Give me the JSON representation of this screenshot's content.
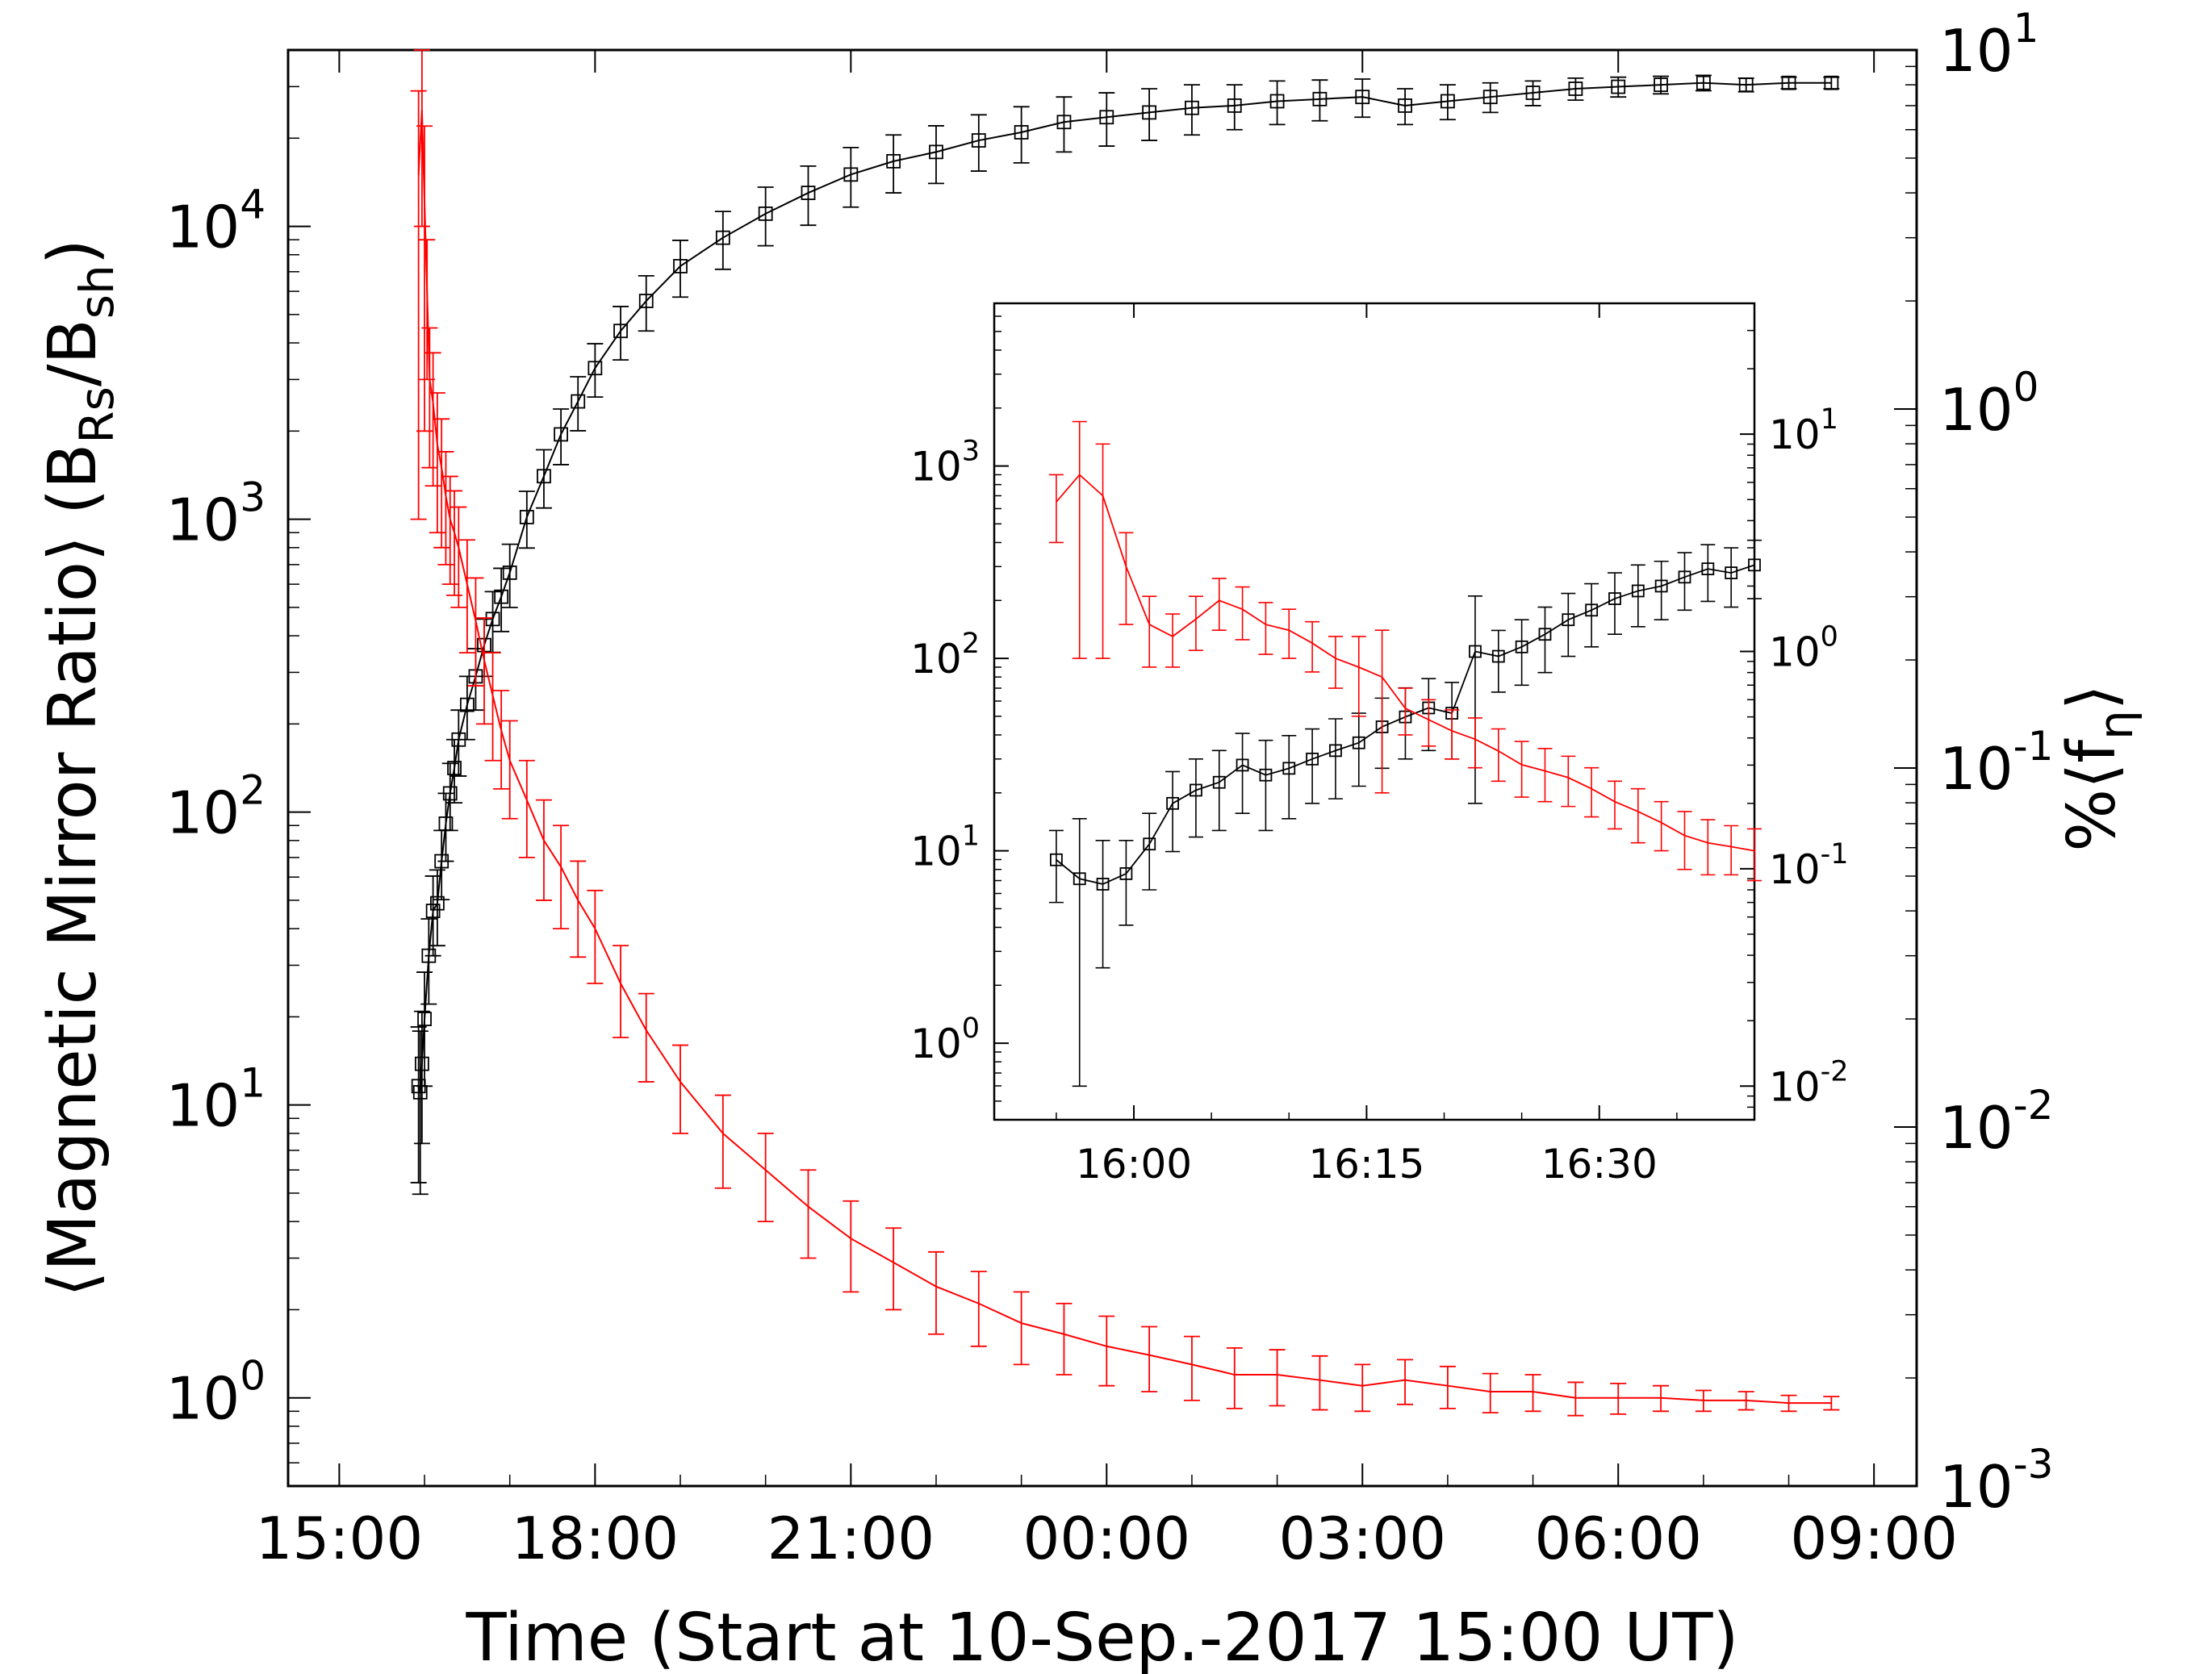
{
  "chart_data": [
    {
      "type": "line",
      "xlabel": "Time (Start at 10-Sep.-2017 15:00 UT)",
      "ylabel": "⟨Magnetic Mirror Ratio⟩ (B_Rs/B_sh)",
      "ylabel_parts": {
        "pre": "⟨Magnetic Mirror Ratio⟩ (B",
        "sub1": "Rs",
        "mid": "/B",
        "sub2": "sh",
        "post": ")"
      },
      "y2label": "%⟨f_η⟩",
      "y2label_parts": {
        "pre": "%⟨f",
        "sub": "η",
        "post": "⟩"
      },
      "x_unit": "hours after 10-Sep-2017 15:00 UT",
      "xlim": [
        -0.6,
        18.5
      ],
      "x_ticks": [
        0,
        3,
        6,
        9,
        12,
        15,
        18
      ],
      "x_tick_labels": [
        "15:00",
        "18:00",
        "21:00",
        "00:00",
        "03:00",
        "06:00",
        "09:00"
      ],
      "yscale": "log",
      "ylim": [
        0.5,
        40000
      ],
      "y_ticks": [
        1,
        10,
        100,
        1000,
        10000
      ],
      "y_tick_labels": [
        {
          "base": "10",
          "exp": "0"
        },
        {
          "base": "10",
          "exp": "1"
        },
        {
          "base": "10",
          "exp": "2"
        },
        {
          "base": "10",
          "exp": "3"
        },
        {
          "base": "10",
          "exp": "4"
        }
      ],
      "y2scale": "log",
      "y2lim": [
        0.001,
        10
      ],
      "y2_ticks": [
        0.001,
        0.01,
        0.1,
        1,
        10
      ],
      "y2_tick_labels": [
        {
          "base": "10",
          "exp": "-3"
        },
        {
          "base": "10",
          "exp": "-2"
        },
        {
          "base": "10",
          "exp": "-1"
        },
        {
          "base": "10",
          "exp": "0"
        },
        {
          "base": "10",
          "exp": "1"
        }
      ],
      "grid": false,
      "series": [
        {
          "axis": "right",
          "color": "#000000",
          "marker": "square",
          "error_bars": true,
          "x": [
            0.93,
            0.95,
            0.97,
            1.0,
            1.05,
            1.1,
            1.15,
            1.2,
            1.25,
            1.3,
            1.35,
            1.4,
            1.5,
            1.6,
            1.7,
            1.8,
            1.9,
            2.0,
            2.2,
            2.4,
            2.6,
            2.8,
            3.0,
            3.3,
            3.6,
            4.0,
            4.5,
            5.0,
            5.5,
            6.0,
            6.5,
            7.0,
            7.5,
            8.0,
            8.5,
            9.0,
            9.5,
            10.0,
            10.5,
            11.0,
            11.5,
            12.0,
            12.5,
            13.0,
            13.5,
            14.0,
            14.5,
            15.0,
            15.5,
            16.0,
            16.5,
            17.0,
            17.5
          ],
          "y": [
            0.013,
            0.0125,
            0.015,
            0.02,
            0.03,
            0.04,
            0.042,
            0.055,
            0.07,
            0.085,
            0.1,
            0.12,
            0.15,
            0.18,
            0.22,
            0.26,
            0.3,
            0.35,
            0.5,
            0.65,
            0.85,
            1.05,
            1.3,
            1.65,
            2.0,
            2.5,
            3.0,
            3.5,
            4.0,
            4.5,
            4.9,
            5.2,
            5.6,
            5.9,
            6.3,
            6.5,
            6.7,
            6.9,
            7.0,
            7.2,
            7.3,
            7.4,
            7.0,
            7.2,
            7.4,
            7.6,
            7.8,
            7.9,
            8.0,
            8.1,
            8.0,
            8.1,
            8.1
          ],
          "yerr": [
            0.006,
            0.006,
            0.006,
            0.007,
            0.008,
            0.01,
            0.01,
            0.012,
            0.015,
            0.018,
            0.02,
            0.025,
            0.03,
            0.035,
            0.04,
            0.05,
            0.06,
            0.07,
            0.09,
            0.12,
            0.15,
            0.18,
            0.22,
            0.28,
            0.35,
            0.45,
            0.55,
            0.65,
            0.75,
            0.85,
            0.9,
            0.95,
            1.0,
            1.05,
            1.1,
            1.1,
            1.1,
            1.1,
            1.0,
            1.0,
            0.95,
            0.9,
            0.8,
            0.8,
            0.7,
            0.6,
            0.55,
            0.5,
            0.45,
            0.4,
            0.35,
            0.3,
            0.3
          ]
        },
        {
          "axis": "left",
          "color": "#ff0000",
          "marker": "none",
          "error_bars": true,
          "x": [
            0.93,
            0.97,
            1.0,
            1.03,
            1.06,
            1.1,
            1.15,
            1.2,
            1.25,
            1.3,
            1.35,
            1.4,
            1.5,
            1.6,
            1.7,
            1.8,
            1.9,
            2.0,
            2.2,
            2.4,
            2.6,
            2.8,
            3.0,
            3.3,
            3.6,
            4.0,
            4.5,
            5.0,
            5.5,
            6.0,
            6.5,
            7.0,
            7.5,
            8.0,
            8.5,
            9.0,
            9.5,
            10.0,
            10.5,
            11.0,
            11.5,
            12.0,
            12.5,
            13.0,
            13.5,
            14.0,
            14.5,
            15.0,
            15.5,
            16.0,
            16.5,
            17.0,
            17.5
          ],
          "y": [
            15000,
            25000,
            12000,
            6000,
            3000,
            2500,
            1800,
            1500,
            1200,
            1000,
            900,
            800,
            600,
            450,
            330,
            250,
            190,
            150,
            110,
            80,
            65,
            50,
            40,
            26,
            18,
            12,
            8,
            6,
            4.5,
            3.5,
            2.9,
            2.4,
            2.1,
            1.8,
            1.65,
            1.5,
            1.4,
            1.3,
            1.2,
            1.2,
            1.15,
            1.1,
            1.15,
            1.1,
            1.05,
            1.05,
            1.0,
            1.0,
            1.0,
            0.98,
            0.98,
            0.96,
            0.96
          ],
          "yerr": [
            14000,
            15000,
            10000,
            3000,
            1500,
            1200,
            900,
            700,
            500,
            400,
            350,
            300,
            250,
            180,
            130,
            100,
            70,
            55,
            40,
            30,
            25,
            18,
            14,
            9,
            6,
            4,
            2.8,
            2.0,
            1.5,
            1.2,
            0.9,
            0.75,
            0.6,
            0.5,
            0.45,
            0.4,
            0.35,
            0.32,
            0.28,
            0.26,
            0.24,
            0.2,
            0.2,
            0.18,
            0.16,
            0.15,
            0.13,
            0.12,
            0.1,
            0.08,
            0.07,
            0.06,
            0.05
          ]
        }
      ]
    },
    {
      "type": "line",
      "role": "inset",
      "x_unit": "minutes after 15:00 UT",
      "xlim": [
        51,
        100
      ],
      "x_ticks": [
        60,
        75,
        90
      ],
      "x_tick_labels": [
        "16:00",
        "16:15",
        "16:30"
      ],
      "yscale": "log",
      "ylim": [
        0.4,
        7000
      ],
      "y_ticks": [
        1,
        10,
        100,
        1000
      ],
      "y_tick_labels": [
        {
          "base": "10",
          "exp": "0"
        },
        {
          "base": "10",
          "exp": "1"
        },
        {
          "base": "10",
          "exp": "2"
        },
        {
          "base": "10",
          "exp": "3"
        }
      ],
      "y2scale": "log",
      "y2lim": [
        0.007,
        40
      ],
      "y2_ticks": [
        0.01,
        0.1,
        1,
        10
      ],
      "y2_tick_labels": [
        {
          "base": "10",
          "exp": "-2"
        },
        {
          "base": "10",
          "exp": "-1"
        },
        {
          "base": "10",
          "exp": "0"
        },
        {
          "base": "10",
          "exp": "1"
        }
      ],
      "grid": false,
      "series": [
        {
          "axis": "right",
          "color": "#000000",
          "marker": "square",
          "error_bars": true,
          "x": [
            55,
            56.5,
            58,
            59.5,
            61,
            62.5,
            64,
            65.5,
            67,
            68.5,
            70,
            71.5,
            73,
            74.5,
            76,
            77.5,
            79,
            80.5,
            82,
            83.5,
            85,
            86.5,
            88,
            89.5,
            91,
            92.5,
            94,
            95.5,
            97,
            98.5,
            100
          ],
          "y": [
            0.11,
            0.09,
            0.085,
            0.095,
            0.13,
            0.2,
            0.23,
            0.25,
            0.3,
            0.27,
            0.29,
            0.32,
            0.35,
            0.38,
            0.45,
            0.5,
            0.55,
            0.52,
            1.0,
            0.95,
            1.05,
            1.2,
            1.4,
            1.55,
            1.75,
            1.9,
            2.0,
            2.2,
            2.4,
            2.3,
            2.5
          ],
          "yerr": [
            0.04,
            0.08,
            0.05,
            0.04,
            0.05,
            0.08,
            0.09,
            0.1,
            0.12,
            0.12,
            0.12,
            0.12,
            0.14,
            0.14,
            0.16,
            0.18,
            0.2,
            0.2,
            0.8,
            0.3,
            0.35,
            0.4,
            0.45,
            0.5,
            0.55,
            0.6,
            0.6,
            0.65,
            0.7,
            0.7,
            0.75
          ]
        },
        {
          "axis": "left",
          "color": "#ff0000",
          "marker": "none",
          "error_bars": true,
          "x": [
            55,
            56.5,
            58,
            59.5,
            61,
            62.5,
            64,
            65.5,
            67,
            68.5,
            70,
            71.5,
            73,
            74.5,
            76,
            77.5,
            79,
            80.5,
            82,
            83.5,
            85,
            86.5,
            88,
            89.5,
            91,
            92.5,
            94,
            95.5,
            97,
            98.5,
            100
          ],
          "y": [
            650,
            900,
            700,
            300,
            150,
            130,
            160,
            200,
            180,
            150,
            140,
            120,
            100,
            90,
            80,
            55,
            48,
            42,
            38,
            33,
            28,
            26,
            24,
            21,
            18,
            16,
            14,
            12,
            11,
            10.5,
            10
          ],
          "yerr": [
            250,
            800,
            600,
            150,
            60,
            40,
            50,
            60,
            55,
            45,
            40,
            35,
            30,
            40,
            60,
            15,
            13,
            12,
            11,
            10,
            9,
            8,
            7,
            6,
            5,
            5,
            4,
            4,
            3.5,
            3,
            3
          ]
        }
      ]
    }
  ]
}
